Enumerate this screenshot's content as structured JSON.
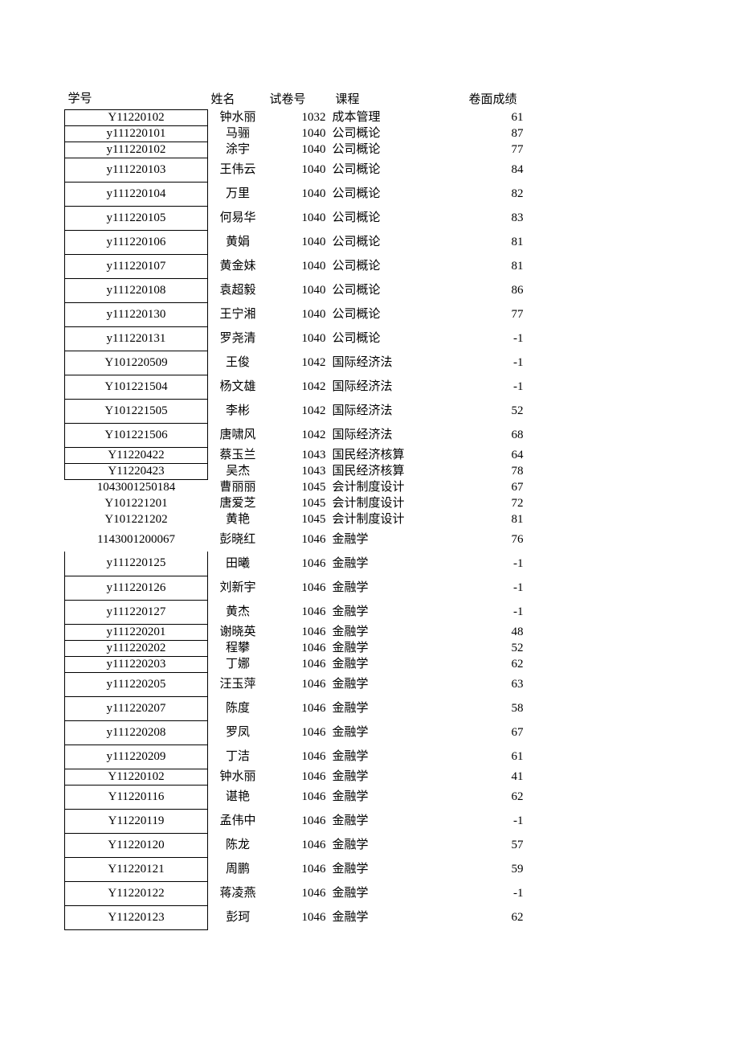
{
  "columns": [
    "学号",
    "姓名",
    "试卷号",
    "课程",
    "卷面成绩"
  ],
  "rows": [
    {
      "id": "Y11220102",
      "name": "钟水丽",
      "exam": "1032",
      "course": "成本管理",
      "score": "61",
      "height": "h-short",
      "bordered": true
    },
    {
      "id": "y111220101",
      "name": "马骊",
      "exam": "1040",
      "course": "公司概论",
      "score": "87",
      "height": "h-short",
      "bordered": true
    },
    {
      "id": "y111220102",
      "name": "涂宇",
      "exam": "1040",
      "course": "公司概论",
      "score": "77",
      "height": "h-short",
      "bordered": true
    },
    {
      "id": "y111220103",
      "name": "王伟云",
      "exam": "1040",
      "course": "公司概论",
      "score": "84",
      "height": "h-med",
      "bordered": true
    },
    {
      "id": "y111220104",
      "name": "万里",
      "exam": "1040",
      "course": "公司概论",
      "score": "82",
      "height": "h-med",
      "bordered": true
    },
    {
      "id": "y111220105",
      "name": "何易华",
      "exam": "1040",
      "course": "公司概论",
      "score": "83",
      "height": "h-med",
      "bordered": true
    },
    {
      "id": "y111220106",
      "name": "黄娟",
      "exam": "1040",
      "course": "公司概论",
      "score": "81",
      "height": "h-med",
      "bordered": true
    },
    {
      "id": "y111220107",
      "name": "黄金妹",
      "exam": "1040",
      "course": "公司概论",
      "score": "81",
      "height": "h-med",
      "bordered": true
    },
    {
      "id": "y111220108",
      "name": "袁超毅",
      "exam": "1040",
      "course": "公司概论",
      "score": "86",
      "height": "h-med",
      "bordered": true
    },
    {
      "id": "y111220130",
      "name": "王宁湘",
      "exam": "1040",
      "course": "公司概论",
      "score": "77",
      "height": "h-med",
      "bordered": true
    },
    {
      "id": "y111220131",
      "name": "罗尧清",
      "exam": "1040",
      "course": "公司概论",
      "score": "-1",
      "height": "h-med",
      "bordered": true
    },
    {
      "id": "Y101220509",
      "name": "王俊",
      "exam": "1042",
      "course": "国际经济法",
      "score": "-1",
      "height": "h-med",
      "bordered": true
    },
    {
      "id": "Y101221504",
      "name": "杨文雄",
      "exam": "1042",
      "course": "国际经济法",
      "score": "-1",
      "height": "h-med",
      "bordered": true
    },
    {
      "id": "Y101221505",
      "name": "李彬",
      "exam": "1042",
      "course": "国际经济法",
      "score": "52",
      "height": "h-med",
      "bordered": true
    },
    {
      "id": "Y101221506",
      "name": "唐啸风",
      "exam": "1042",
      "course": "国际经济法",
      "score": "68",
      "height": "h-med",
      "bordered": true
    },
    {
      "id": "Y11220422",
      "name": "蔡玉兰",
      "exam": "1043",
      "course": "国民经济核算",
      "score": "64",
      "height": "h-short",
      "bordered": true
    },
    {
      "id": "Y11220423",
      "name": "吴杰",
      "exam": "1043",
      "course": "国民经济核算",
      "score": "78",
      "height": "h-short",
      "bordered": true
    },
    {
      "id": "1043001250184",
      "name": "曹丽丽",
      "exam": "1045",
      "course": "会计制度设计",
      "score": "67",
      "height": "h-short",
      "bordered": false
    },
    {
      "id": "Y101221201",
      "name": "唐爱芝",
      "exam": "1045",
      "course": "会计制度设计",
      "score": "72",
      "height": "h-short",
      "bordered": false
    },
    {
      "id": "Y101221202",
      "name": "黄艳",
      "exam": "1045",
      "course": "会计制度设计",
      "score": "81",
      "height": "h-short",
      "bordered": false
    },
    {
      "id": "1143001200067",
      "name": "彭晓红",
      "exam": "1046",
      "course": "金融学",
      "score": "76",
      "height": "h-med",
      "bordered": false
    },
    {
      "id": "y111220125",
      "name": "田曦",
      "exam": "1046",
      "course": "金融学",
      "score": "-1",
      "height": "h-med",
      "bordered": true
    },
    {
      "id": "y111220126",
      "name": "刘新宇",
      "exam": "1046",
      "course": "金融学",
      "score": "-1",
      "height": "h-med",
      "bordered": true
    },
    {
      "id": "y111220127",
      "name": "黄杰",
      "exam": "1046",
      "course": "金融学",
      "score": "-1",
      "height": "h-med",
      "bordered": true
    },
    {
      "id": "y111220201",
      "name": "谢晓英",
      "exam": "1046",
      "course": "金融学",
      "score": "48",
      "height": "h-short",
      "bordered": true
    },
    {
      "id": "y111220202",
      "name": "程攀",
      "exam": "1046",
      "course": "金融学",
      "score": "52",
      "height": "h-short",
      "bordered": true
    },
    {
      "id": "y111220203",
      "name": "丁娜",
      "exam": "1046",
      "course": "金融学",
      "score": "62",
      "height": "h-short",
      "bordered": true
    },
    {
      "id": "y111220205",
      "name": "汪玉萍",
      "exam": "1046",
      "course": "金融学",
      "score": "63",
      "height": "h-med",
      "bordered": true
    },
    {
      "id": "y111220207",
      "name": "陈度",
      "exam": "1046",
      "course": "金融学",
      "score": "58",
      "height": "h-med",
      "bordered": true
    },
    {
      "id": "y111220208",
      "name": "罗凤",
      "exam": "1046",
      "course": "金融学",
      "score": "67",
      "height": "h-med",
      "bordered": true
    },
    {
      "id": "y111220209",
      "name": "丁洁",
      "exam": "1046",
      "course": "金融学",
      "score": "61",
      "height": "h-med",
      "bordered": true
    },
    {
      "id": "Y11220102",
      "name": "钟水丽",
      "exam": "1046",
      "course": "金融学",
      "score": "41",
      "height": "h-short",
      "bordered": true
    },
    {
      "id": "Y11220116",
      "name": "谌艳",
      "exam": "1046",
      "course": "金融学",
      "score": "62",
      "height": "h-med",
      "bordered": true
    },
    {
      "id": "Y11220119",
      "name": "孟伟中",
      "exam": "1046",
      "course": "金融学",
      "score": "-1",
      "height": "h-med",
      "bordered": true
    },
    {
      "id": "Y11220120",
      "name": "陈龙",
      "exam": "1046",
      "course": "金融学",
      "score": "57",
      "height": "h-med",
      "bordered": true
    },
    {
      "id": "Y11220121",
      "name": "周鹏",
      "exam": "1046",
      "course": "金融学",
      "score": "59",
      "height": "h-med",
      "bordered": true
    },
    {
      "id": "Y11220122",
      "name": "蒋凌燕",
      "exam": "1046",
      "course": "金融学",
      "score": "-1",
      "height": "h-med",
      "bordered": true
    },
    {
      "id": "Y11220123",
      "name": "彭珂",
      "exam": "1046",
      "course": "金融学",
      "score": "62",
      "height": "h-med",
      "bordered": true
    }
  ]
}
